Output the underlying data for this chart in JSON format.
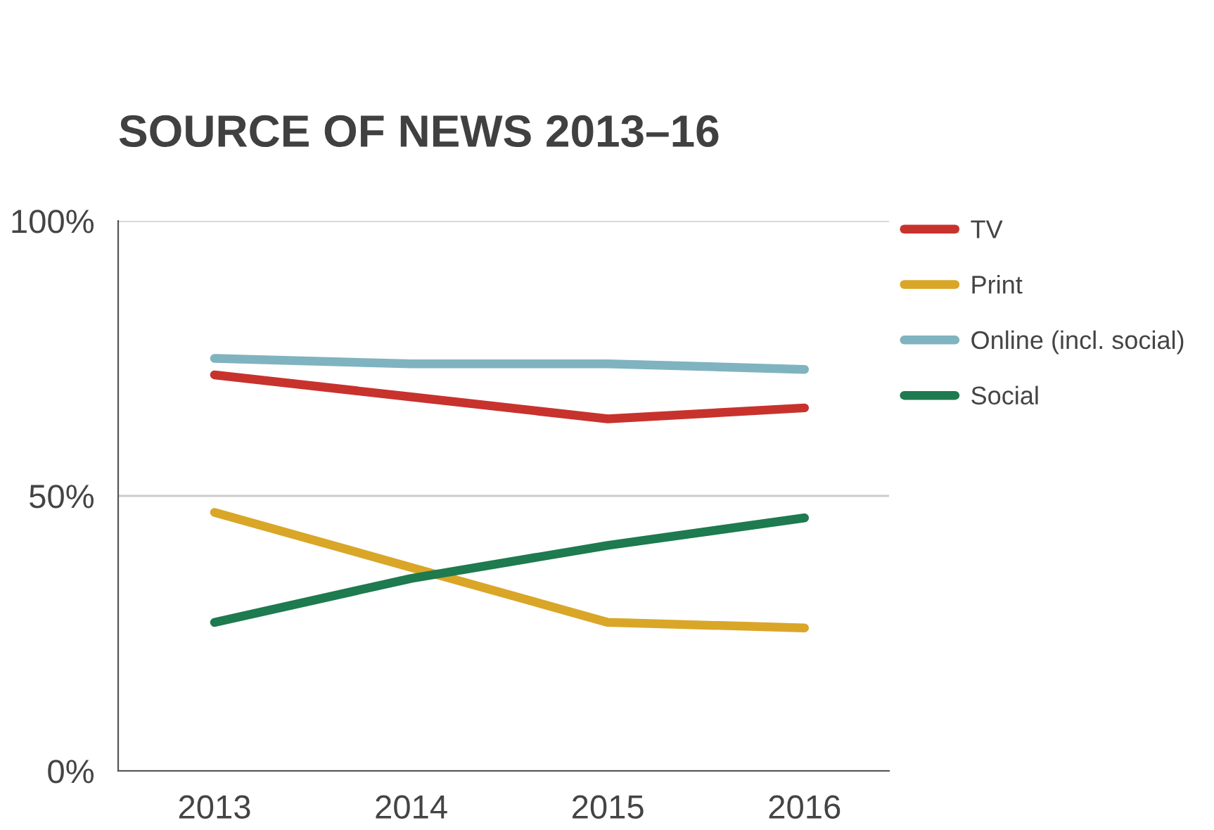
{
  "chart_data": {
    "type": "line",
    "title": "SOURCE OF NEWS 2013–16",
    "categories": [
      "2013",
      "2014",
      "2015",
      "2016"
    ],
    "series": [
      {
        "name": "TV",
        "color": "#c8322d",
        "values": [
          72,
          68,
          64,
          66
        ]
      },
      {
        "name": "Print",
        "color": "#d9a628",
        "values": [
          47,
          37,
          27,
          26
        ]
      },
      {
        "name": "Online (incl. social)",
        "color": "#7fb3c0",
        "values": [
          75,
          74,
          74,
          73
        ]
      },
      {
        "name": "Social",
        "color": "#1e7a4f",
        "values": [
          27,
          35,
          41,
          46
        ]
      }
    ],
    "ylim": [
      0,
      100
    ],
    "yticks": [
      {
        "value": 0,
        "label": "0%"
      },
      {
        "value": 50,
        "label": "50%"
      },
      {
        "value": 100,
        "label": "100%"
      }
    ],
    "grid": "y",
    "legend": "right",
    "marker": "none",
    "line_style": "solid"
  }
}
